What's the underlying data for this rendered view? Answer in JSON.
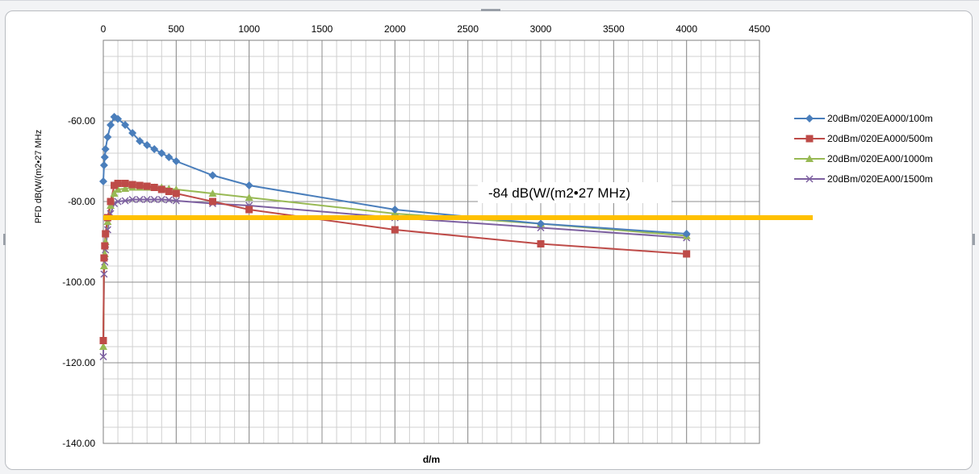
{
  "chart_data": {
    "type": "scatter",
    "title": "",
    "xlabel": "d/m",
    "ylabel": "PFD dB(W/(m2•27 MHz",
    "xlim": [
      0,
      4500
    ],
    "ylim": [
      -140,
      -40
    ],
    "x_ticks": [
      "0",
      "500",
      "1000",
      "1500",
      "2000",
      "2500",
      "3000",
      "3500",
      "4000",
      "4500"
    ],
    "y_ticks": [
      "-60.00",
      "-80.00",
      "-100.00",
      "-120.00",
      "-140.00"
    ],
    "x_axis_position": "top",
    "grid": true,
    "legend_position": "right",
    "series": [
      {
        "name": "20dBm/020EA000/100m",
        "color": "#4a7ebb",
        "marker": "diamond",
        "points": [
          [
            0,
            -75
          ],
          [
            5,
            -71
          ],
          [
            10,
            -69
          ],
          [
            15,
            -67
          ],
          [
            30,
            -64
          ],
          [
            50,
            -61
          ],
          [
            75,
            -59
          ],
          [
            100,
            -59.5
          ],
          [
            150,
            -61
          ],
          [
            200,
            -63
          ],
          [
            250,
            -65
          ],
          [
            300,
            -66
          ],
          [
            350,
            -67
          ],
          [
            400,
            -68
          ],
          [
            450,
            -69
          ],
          [
            500,
            -70
          ],
          [
            750,
            -73.5
          ],
          [
            1000,
            -76
          ],
          [
            2000,
            -82
          ],
          [
            3000,
            -85.5
          ],
          [
            4000,
            -88
          ]
        ]
      },
      {
        "name": "20dBm/020EA000/500m",
        "color": "#be4b48",
        "marker": "square",
        "points": [
          [
            0,
            -114.5
          ],
          [
            5,
            -94
          ],
          [
            10,
            -91
          ],
          [
            15,
            -88
          ],
          [
            30,
            -84
          ],
          [
            50,
            -80
          ],
          [
            75,
            -76
          ],
          [
            100,
            -75.5
          ],
          [
            150,
            -75.5
          ],
          [
            200,
            -75.8
          ],
          [
            250,
            -76
          ],
          [
            300,
            -76.2
          ],
          [
            350,
            -76.5
          ],
          [
            400,
            -77
          ],
          [
            450,
            -77.5
          ],
          [
            500,
            -78
          ],
          [
            750,
            -80
          ],
          [
            1000,
            -82
          ],
          [
            2000,
            -87
          ],
          [
            3000,
            -90.5
          ],
          [
            4000,
            -93
          ]
        ]
      },
      {
        "name": "20dBm/020EA00/1000m",
        "color": "#98b954",
        "marker": "triangle",
        "points": [
          [
            0,
            -116
          ],
          [
            5,
            -96
          ],
          [
            10,
            -93
          ],
          [
            15,
            -90
          ],
          [
            30,
            -85
          ],
          [
            50,
            -81
          ],
          [
            75,
            -78
          ],
          [
            100,
            -77
          ],
          [
            150,
            -76.8
          ],
          [
            200,
            -76.5
          ],
          [
            250,
            -76.5
          ],
          [
            300,
            -76.5
          ],
          [
            350,
            -76.5
          ],
          [
            400,
            -76.5
          ],
          [
            450,
            -76.8
          ],
          [
            500,
            -77
          ],
          [
            750,
            -78
          ],
          [
            1000,
            -79
          ],
          [
            2000,
            -83
          ],
          [
            3000,
            -85.5
          ],
          [
            4000,
            -88.5
          ]
        ]
      },
      {
        "name": "20dBm/020EA00/1500m",
        "color": "#7d60a0",
        "marker": "x",
        "points": [
          [
            0,
            -118.5
          ],
          [
            5,
            -98
          ],
          [
            10,
            -95
          ],
          [
            15,
            -92
          ],
          [
            30,
            -87
          ],
          [
            50,
            -83
          ],
          [
            75,
            -80.5
          ],
          [
            100,
            -80
          ],
          [
            150,
            -79.8
          ],
          [
            200,
            -79.5
          ],
          [
            250,
            -79.5
          ],
          [
            300,
            -79.5
          ],
          [
            350,
            -79.5
          ],
          [
            400,
            -79.5
          ],
          [
            450,
            -79.6
          ],
          [
            500,
            -79.8
          ],
          [
            750,
            -80.5
          ],
          [
            1000,
            -81
          ],
          [
            2000,
            -84
          ],
          [
            3000,
            -86.5
          ],
          [
            4000,
            -89
          ]
        ]
      }
    ],
    "reference_line": {
      "value": -84,
      "label": "-84 dB(W/(m2•27 MHz)",
      "color": "#ffc000"
    }
  }
}
